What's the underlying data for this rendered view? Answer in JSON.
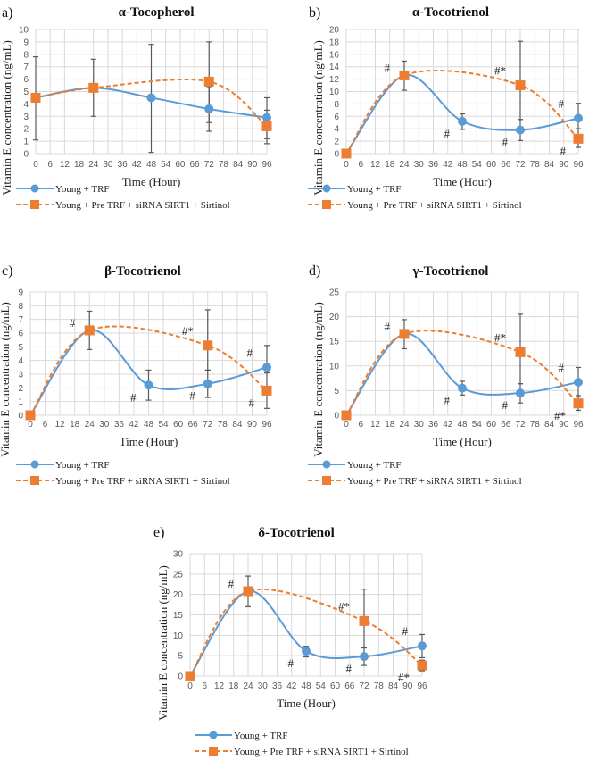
{
  "colors": {
    "series1": "#5B9BD5",
    "series2": "#ED7D31",
    "grid": "#D9D9D9",
    "error_bar": "#595959"
  },
  "legend": [
    "Young + TRF",
    "Young + Pre TRF + siRNA SIRT1 + Sirtinol"
  ],
  "chart_data": [
    {
      "panel": "a)",
      "type": "line",
      "title": "α-Tocopherol",
      "xlabel": "Time  (Hour)",
      "ylabel": "Vitamin  E concentration  (ng/mL)",
      "xlim": [
        0,
        96
      ],
      "xticks": [
        0,
        6,
        12,
        18,
        24,
        30,
        36,
        42,
        48,
        54,
        60,
        66,
        72,
        78,
        84,
        90,
        96
      ],
      "ylim": [
        0,
        10
      ],
      "ystep": 1,
      "grid": true,
      "legend_position": "bottom",
      "series": [
        {
          "name": "Young + TRF",
          "x": [
            0,
            24,
            48,
            72,
            96
          ],
          "y": [
            4.5,
            5.3,
            4.5,
            3.6,
            2.9
          ],
          "err": [
            [
              1.1,
              7.8
            ],
            [
              3.0,
              7.6
            ],
            [
              0.1,
              8.8
            ],
            [
              2.5,
              5.4
            ],
            [
              1.2,
              3.5
            ]
          ]
        },
        {
          "name": "Young + Pre TRF + siRNA SIRT1 + Sirtinol",
          "x": [
            0,
            24,
            72,
            96
          ],
          "y": [
            4.5,
            5.3,
            5.8,
            2.2
          ],
          "err": [
            null,
            null,
            [
              1.8,
              9.0
            ],
            [
              0.8,
              4.5
            ]
          ]
        }
      ],
      "annotations": []
    },
    {
      "panel": "b)",
      "type": "line",
      "title": "α-Tocotrienol",
      "xlabel": "Time  (Hour)",
      "ylabel": "Vitamin  E concentration  (ng/mL)",
      "xlim": [
        0,
        96
      ],
      "xticks": [
        0,
        6,
        12,
        18,
        24,
        30,
        36,
        42,
        48,
        54,
        60,
        66,
        72,
        78,
        84,
        90,
        96
      ],
      "ylim": [
        0,
        20
      ],
      "ystep": 2,
      "grid": true,
      "legend_position": "bottom",
      "series": [
        {
          "name": "Young + TRF",
          "x": [
            0,
            24,
            48,
            72,
            96
          ],
          "y": [
            0,
            12.6,
            5.2,
            3.8,
            5.7
          ],
          "err": [
            null,
            [
              10.2,
              14.9
            ],
            [
              3.9,
              6.4
            ],
            [
              2.1,
              5.5
            ],
            [
              4.0,
              8.1
            ]
          ]
        },
        {
          "name": "Young + Pre TRF + siRNA SIRT1 + Sirtinol",
          "x": [
            0,
            24,
            72,
            96
          ],
          "y": [
            0,
            12.6,
            11.0,
            2.4
          ],
          "err": [
            null,
            null,
            [
              5.5,
              18.1
            ],
            [
              1.0,
              4.0
            ]
          ]
        }
      ],
      "annotations": [
        {
          "text": "#",
          "series": 0,
          "x": 24,
          "pos": "left"
        },
        {
          "text": "#",
          "series": 0,
          "x": 48,
          "pos": "below-left"
        },
        {
          "text": "#",
          "series": 0,
          "x": 72,
          "pos": "below-left"
        },
        {
          "text": "#*",
          "series": 1,
          "x": 72,
          "pos": "above-left"
        },
        {
          "text": "#",
          "series": 0,
          "x": 96,
          "pos": "above-left"
        },
        {
          "text": "#",
          "series": 1,
          "x": 96,
          "pos": "below-left"
        }
      ]
    },
    {
      "panel": "c)",
      "type": "line",
      "title": "β-Tocotrienol",
      "xlabel": "Time  (Hour)",
      "ylabel": "Vitamin  E concentration  (ng/mL)",
      "xlim": [
        0,
        96
      ],
      "xticks": [
        0,
        6,
        12,
        18,
        24,
        30,
        36,
        42,
        48,
        54,
        60,
        66,
        72,
        78,
        84,
        90,
        96
      ],
      "ylim": [
        0,
        9
      ],
      "ystep": 1,
      "grid": true,
      "legend_position": "bottom",
      "series": [
        {
          "name": "Young + TRF",
          "x": [
            0,
            24,
            48,
            72,
            96
          ],
          "y": [
            0,
            6.2,
            2.2,
            2.3,
            3.5
          ],
          "err": [
            null,
            [
              4.8,
              7.6
            ],
            [
              1.1,
              3.3
            ],
            [
              1.3,
              3.3
            ],
            [
              3.1,
              5.1
            ]
          ]
        },
        {
          "name": "Young + Pre TRF + siRNA SIRT1 + Sirtinol",
          "x": [
            0,
            24,
            72,
            96
          ],
          "y": [
            0,
            6.2,
            5.1,
            1.8
          ],
          "err": [
            null,
            null,
            [
              3.3,
              7.7
            ],
            [
              0.5,
              3.1
            ]
          ]
        }
      ],
      "annotations": [
        {
          "text": "#",
          "series": 0,
          "x": 24,
          "pos": "left"
        },
        {
          "text": "#",
          "series": 0,
          "x": 48,
          "pos": "below-left"
        },
        {
          "text": "#",
          "series": 0,
          "x": 72,
          "pos": "below-left"
        },
        {
          "text": "#*",
          "series": 1,
          "x": 72,
          "pos": "above-left"
        },
        {
          "text": "#",
          "series": 0,
          "x": 96,
          "pos": "above-left"
        },
        {
          "text": "#",
          "series": 1,
          "x": 96,
          "pos": "below-left"
        }
      ]
    },
    {
      "panel": "d)",
      "type": "line",
      "title": "γ-Tocotrienol",
      "xlabel": "Time  (Hour)",
      "ylabel": "Vitamin  E concentration  (ng/mL)",
      "xlim": [
        0,
        96
      ],
      "xticks": [
        0,
        6,
        12,
        18,
        24,
        30,
        36,
        42,
        48,
        54,
        60,
        66,
        72,
        78,
        84,
        90,
        96
      ],
      "ylim": [
        0,
        25
      ],
      "ystep": 5,
      "grid": true,
      "legend_position": "bottom",
      "series": [
        {
          "name": "Young + TRF",
          "x": [
            0,
            24,
            48,
            72,
            96
          ],
          "y": [
            0,
            16.5,
            5.5,
            4.5,
            6.7
          ],
          "err": [
            null,
            [
              13.5,
              19.4
            ],
            [
              4.1,
              6.9
            ],
            [
              2.5,
              6.4
            ],
            [
              3.7,
              9.7
            ]
          ]
        },
        {
          "name": "Young + Pre TRF + siRNA SIRT1 + Sirtinol",
          "x": [
            0,
            24,
            72,
            96
          ],
          "y": [
            0,
            16.5,
            12.8,
            2.4
          ],
          "err": [
            null,
            null,
            [
              6.4,
              20.5
            ],
            [
              1.0,
              4.0
            ]
          ]
        }
      ],
      "annotations": [
        {
          "text": "#",
          "series": 0,
          "x": 24,
          "pos": "left"
        },
        {
          "text": "#",
          "series": 0,
          "x": 48,
          "pos": "below-left"
        },
        {
          "text": "#",
          "series": 0,
          "x": 72,
          "pos": "below-left"
        },
        {
          "text": "#*",
          "series": 1,
          "x": 72,
          "pos": "above-left"
        },
        {
          "text": "#",
          "series": 0,
          "x": 96,
          "pos": "above-left"
        },
        {
          "text": "#*",
          "series": 1,
          "x": 96,
          "pos": "below-left"
        }
      ]
    },
    {
      "panel": "e)",
      "type": "line",
      "title": "δ-Tocotrienol",
      "xlabel": "Time  (Hour)",
      "ylabel": "Vitamin  E concentration  (ng/mL)",
      "xlim": [
        0,
        96
      ],
      "xticks": [
        0,
        6,
        12,
        18,
        24,
        30,
        36,
        42,
        48,
        54,
        60,
        66,
        72,
        78,
        84,
        90,
        96
      ],
      "ylim": [
        0,
        30
      ],
      "ystep": 5,
      "grid": true,
      "legend_position": "bottom",
      "series": [
        {
          "name": "Young + TRF",
          "x": [
            0,
            24,
            48,
            72,
            96
          ],
          "y": [
            0,
            20.8,
            6.1,
            4.8,
            7.4
          ],
          "err": [
            null,
            [
              17.0,
              24.5
            ],
            [
              4.7,
              7.3
            ],
            [
              2.6,
              6.9
            ],
            [
              4.5,
              10.2
            ]
          ]
        },
        {
          "name": "Young + Pre TRF + siRNA SIRT1 + Sirtinol",
          "x": [
            0,
            24,
            72,
            96
          ],
          "y": [
            0,
            20.8,
            13.5,
            2.6
          ],
          "err": [
            null,
            null,
            [
              6.9,
              21.3
            ],
            [
              1.3,
              3.9
            ]
          ]
        }
      ],
      "annotations": [
        {
          "text": "#",
          "series": 0,
          "x": 24,
          "pos": "left"
        },
        {
          "text": "#",
          "series": 0,
          "x": 48,
          "pos": "below-left"
        },
        {
          "text": "#",
          "series": 0,
          "x": 72,
          "pos": "below-left"
        },
        {
          "text": "#*",
          "series": 1,
          "x": 72,
          "pos": "above-left"
        },
        {
          "text": "#",
          "series": 0,
          "x": 96,
          "pos": "above-left"
        },
        {
          "text": "#*",
          "series": 1,
          "x": 96,
          "pos": "below-left"
        }
      ]
    }
  ]
}
